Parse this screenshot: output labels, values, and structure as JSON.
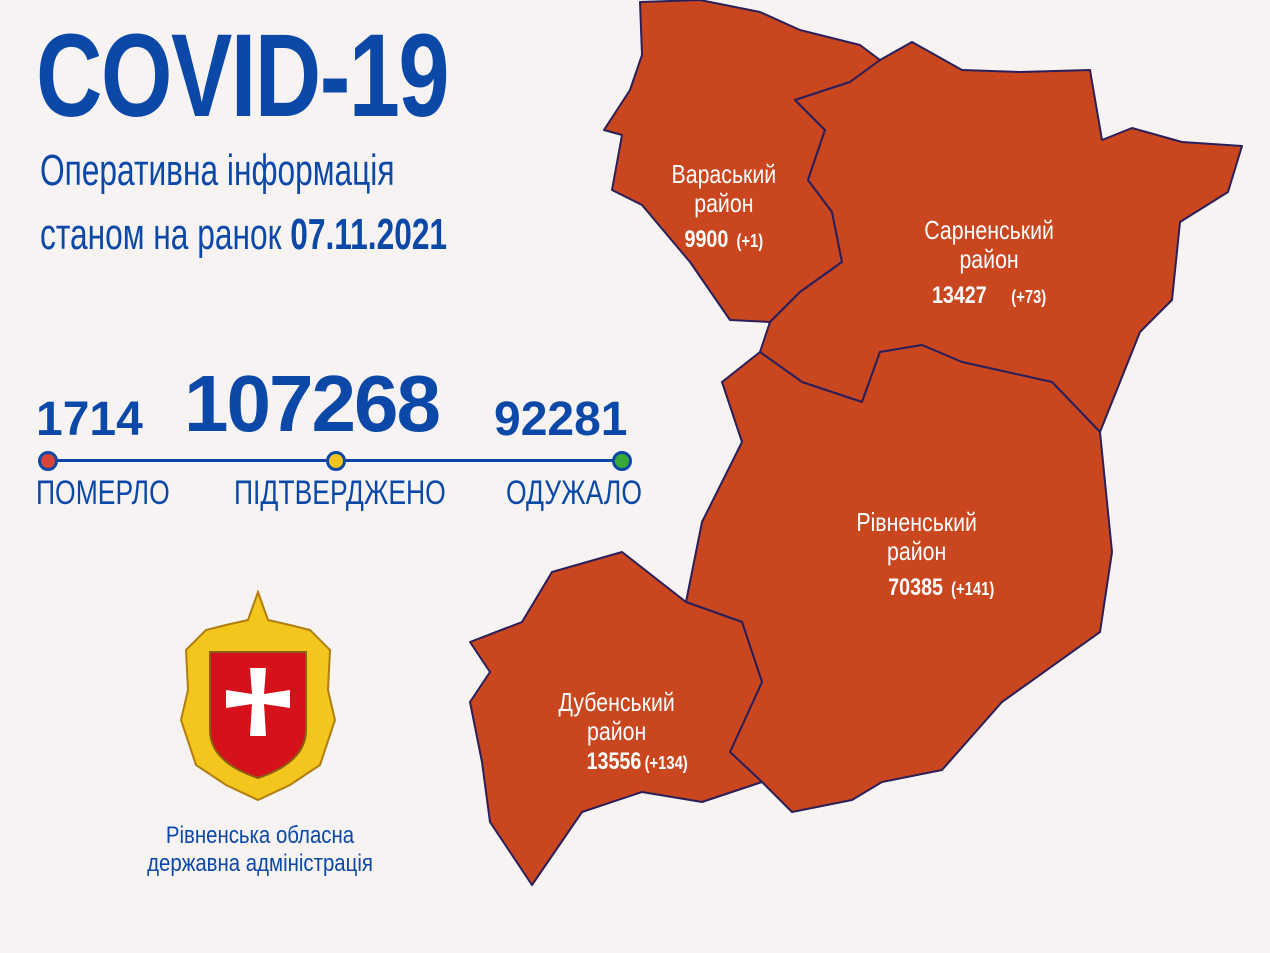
{
  "header": {
    "title": "COVID-19",
    "subtitle_line1": "Оперативна інформація",
    "subtitle_line2_prefix": "станом на ранок",
    "date": "07.11.2021"
  },
  "totals": {
    "deaths": {
      "value": "1714",
      "label": "ПОМЕРЛО",
      "color": "#d94438"
    },
    "confirmed": {
      "value": "107268",
      "label": "ПІДТВЕРДЖЕНО",
      "color": "#f2c31b"
    },
    "recovered": {
      "value": "92281",
      "label": "ОДУЖАЛО",
      "color": "#3aa836"
    }
  },
  "districts": [
    {
      "name_line1": "Вараський",
      "name_line2": "район",
      "total": "9900",
      "new": "(+1)"
    },
    {
      "name_line1": "Сарненський",
      "name_line2": "район",
      "total": "13427",
      "new": "(+73)"
    },
    {
      "name_line1": "Рівненський",
      "name_line2": "район",
      "total": "70385",
      "new": "(+141)"
    },
    {
      "name_line1": "Дубенський",
      "name_line2": "район",
      "total": "13556",
      "new": "(+134)"
    }
  ],
  "organization": {
    "line1": "Рівненська обласна",
    "line2": "державна адміністрація"
  },
  "colors": {
    "primary": "#0b48a8",
    "map_fill": "#c9461f",
    "map_border": "#2b1f5a"
  }
}
